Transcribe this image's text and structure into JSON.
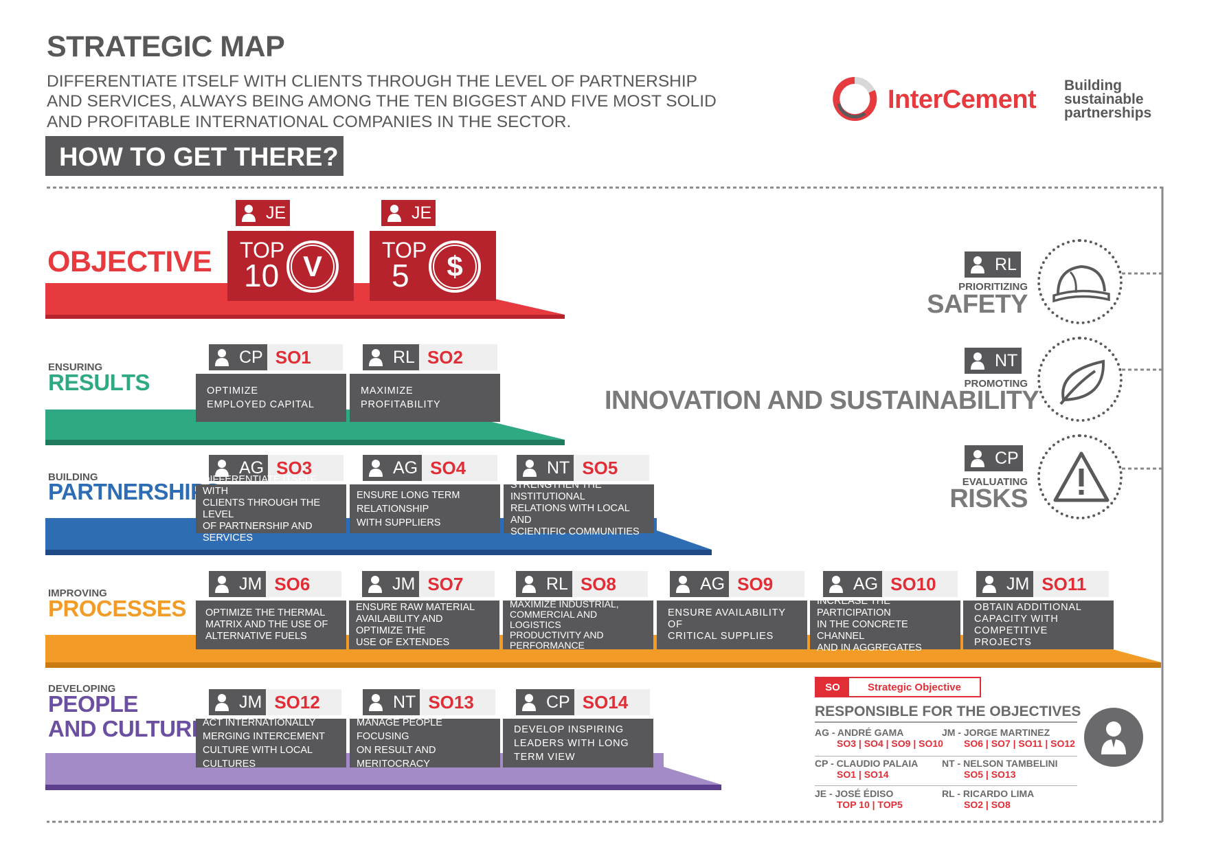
{
  "header": {
    "title": "STRATEGIC MAP",
    "vision_lines": [
      "DIFFERENTIATE ITSELF WITH CLIENTS THROUGH THE LEVEL OF PARTNERSHIP",
      "AND SERVICES, ALWAYS BEING AMONG THE TEN BIGGEST AND FIVE MOST SOLID",
      "AND PROFITABLE INTERNATIONAL COMPANIES IN THE SECTOR."
    ],
    "how_title": "HOW TO GET THERE?"
  },
  "brand": {
    "name": "InterCement",
    "tagline": [
      "Building",
      "sustainable",
      "partnerships"
    ],
    "color": "#e63a3f"
  },
  "objective": {
    "label": "OBJECTIVE",
    "color": "#e63a3f",
    "items": [
      {
        "responsible": "JE",
        "top_word": "TOP",
        "top_number": "10",
        "symbol": "V"
      },
      {
        "responsible": "JE",
        "top_word": "TOP",
        "top_number": "5",
        "symbol": "$"
      }
    ]
  },
  "stages": [
    {
      "pre": "ENSURING",
      "main": [
        "RESULTS"
      ],
      "color": "#2ea984",
      "objectives": [
        {
          "responsible": "CP",
          "code": "SO1",
          "text": [
            "OPTIMIZE",
            "EMPLOYED CAPITAL"
          ]
        },
        {
          "responsible": "RL",
          "code": "SO2",
          "text": [
            "MAXIMIZE",
            "PROFITABILITY"
          ]
        }
      ]
    },
    {
      "pre": "BUILDING",
      "main": [
        "PARTNERSHIPS"
      ],
      "color": "#2e6db4",
      "objectives": [
        {
          "responsible": "AG",
          "code": "SO3",
          "text": [
            "DIFFERENTIATE ITSELF WITH",
            "CLIENTS THROUGH THE LEVEL",
            "OF PARTNERSHIP AND SERVICES"
          ]
        },
        {
          "responsible": "AG",
          "code": "SO4",
          "text": [
            "ENSURE LONG TERM",
            "RELATIONSHIP",
            "WITH SUPPLIERS"
          ]
        },
        {
          "responsible": "NT",
          "code": "SO5",
          "text": [
            "STRENGTHEN THE INSTITUTIONAL",
            "RELATIONS WITH LOCAL AND",
            "SCIENTIFIC COMMUNITIES"
          ]
        }
      ]
    },
    {
      "pre": "IMPROVING",
      "main": [
        "PROCESSES"
      ],
      "color": "#f29b26",
      "objectives": [
        {
          "responsible": "JM",
          "code": "SO6",
          "text": [
            "OPTIMIZE THE THERMAL",
            "MATRIX AND THE USE OF",
            "ALTERNATIVE FUELS"
          ]
        },
        {
          "responsible": "JM",
          "code": "SO7",
          "text": [
            "ENSURE RAW MATERIAL",
            "AVAILABILITY AND OPTIMIZE THE",
            "USE OF EXTENDES"
          ]
        },
        {
          "responsible": "RL",
          "code": "SO8",
          "text": [
            "MAXIMIZE INDUSTRIAL,",
            "COMMERCIAL AND LOGISTICS",
            "PRODUCTIVITY AND",
            "PERFORMANCE"
          ]
        },
        {
          "responsible": "AG",
          "code": "SO9",
          "text": [
            "ENSURE AVAILABILITY OF",
            "CRITICAL SUPPLIES"
          ]
        },
        {
          "responsible": "AG",
          "code": "SO10",
          "text": [
            "INCREASE THE PARTICIPATION",
            "IN THE CONCRETE CHANNEL",
            "AND IN AGGREGATES"
          ]
        },
        {
          "responsible": "JM",
          "code": "SO11",
          "text": [
            "OBTAIN ADDITIONAL",
            "CAPACITY WITH",
            "COMPETITIVE PROJECTS"
          ]
        }
      ]
    },
    {
      "pre": "DEVELOPING",
      "main": [
        "PEOPLE",
        "AND CULTURE"
      ],
      "color": "#8e6ab5",
      "objectives": [
        {
          "responsible": "JM",
          "code": "SO12",
          "text": [
            "ACT INTERNATIONALLY",
            "MERGING INTERCEMENT",
            "CULTURE WITH LOCAL CULTURES"
          ]
        },
        {
          "responsible": "NT",
          "code": "SO13",
          "text": [
            "MANAGE PEOPLE FOCUSING",
            "ON RESULT AND",
            "MERITOCRACY"
          ]
        },
        {
          "responsible": "CP",
          "code": "SO14",
          "text": [
            "DEVELOP INSPIRING",
            "LEADERS WITH LONG",
            "TERM VIEW"
          ]
        }
      ]
    }
  ],
  "pillars": [
    {
      "responsible": "RL",
      "small": "PRIORITIZING",
      "big": "SAFETY",
      "icon": "hard-hat-icon"
    },
    {
      "responsible": "NT",
      "small": "PROMOTING",
      "big": "INNOVATION AND SUSTAINABILITY",
      "icon": "leaf-icon"
    },
    {
      "responsible": "CP",
      "small": "EVALUATING",
      "big": "RISKS",
      "icon": "warning-icon"
    }
  ],
  "legend": {
    "so_key": "SO",
    "so_label": "Strategic Objective",
    "title": "RESPONSIBLE FOR THE OBJECTIVES",
    "people": [
      {
        "name": "AG - ANDRÉ GAMA",
        "codes": "SO3 | SO4 | SO9 | SO10"
      },
      {
        "name": "JM - JORGE MARTINEZ",
        "codes": "SO6 | SO7 | SO11 | SO12"
      },
      {
        "name": "CP - CLAUDIO PALAIA",
        "codes": "SO1 | SO14"
      },
      {
        "name": "NT - NELSON TAMBELINI",
        "codes": "SO5 | SO13"
      },
      {
        "name": "JE - JOSÉ ÉDISO",
        "codes": "TOP 10 | TOP5"
      },
      {
        "name": "RL - RICARDO LIMA",
        "codes": "SO2 | SO8"
      }
    ]
  }
}
